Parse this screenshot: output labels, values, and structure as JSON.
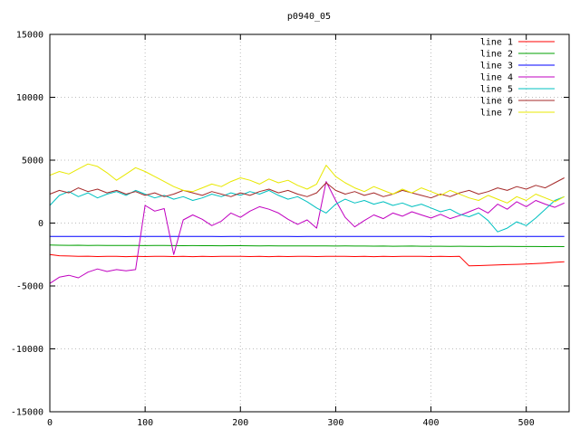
{
  "colors": {
    "background": "#ffffff",
    "grid": "#bdbdbd",
    "axis": "#000000",
    "text": "#000000"
  },
  "chart_data": {
    "type": "line",
    "title": "p0940_05",
    "xlabel": "",
    "ylabel": "",
    "xlim": [
      0,
      545
    ],
    "ylim": [
      -15000,
      15000
    ],
    "x_ticks": [
      0,
      100,
      200,
      300,
      400,
      500
    ],
    "y_ticks": [
      -15000,
      -10000,
      -5000,
      0,
      5000,
      10000,
      15000
    ],
    "grid": true,
    "legend_position": "top-right-inside",
    "x": [
      0,
      10,
      20,
      30,
      40,
      50,
      60,
      70,
      80,
      90,
      100,
      110,
      120,
      130,
      140,
      150,
      160,
      170,
      180,
      190,
      200,
      210,
      220,
      230,
      240,
      250,
      260,
      270,
      280,
      290,
      300,
      310,
      320,
      330,
      340,
      350,
      360,
      370,
      380,
      390,
      400,
      410,
      420,
      430,
      440,
      450,
      460,
      470,
      480,
      490,
      500,
      510,
      520,
      530,
      540
    ],
    "series": [
      {
        "name": "line 1",
        "color": "#ff0000",
        "values": [
          -2500,
          -2600,
          -2620,
          -2650,
          -2630,
          -2660,
          -2640,
          -2650,
          -2670,
          -2650,
          -2660,
          -2650,
          -2640,
          -2660,
          -2650,
          -2670,
          -2650,
          -2660,
          -2650,
          -2640,
          -2650,
          -2660,
          -2650,
          -2670,
          -2650,
          -2660,
          -2640,
          -2650,
          -2660,
          -2650,
          -2640,
          -2650,
          -2660,
          -2650,
          -2670,
          -2650,
          -2660,
          -2650,
          -2640,
          -2650,
          -2660,
          -2650,
          -2660,
          -2650,
          -3400,
          -3380,
          -3350,
          -3330,
          -3300,
          -3280,
          -3250,
          -3220,
          -3180,
          -3120,
          -3080
        ]
      },
      {
        "name": "line 2",
        "color": "#00a000",
        "values": [
          -1750,
          -1760,
          -1770,
          -1765,
          -1775,
          -1770,
          -1780,
          -1775,
          -1785,
          -1780,
          -1790,
          -1785,
          -1780,
          -1790,
          -1795,
          -1790,
          -1800,
          -1795,
          -1805,
          -1800,
          -1800,
          -1805,
          -1810,
          -1805,
          -1815,
          -1810,
          -1820,
          -1815,
          -1810,
          -1820,
          -1825,
          -1820,
          -1830,
          -1825,
          -1835,
          -1830,
          -1840,
          -1835,
          -1830,
          -1840,
          -1845,
          -1840,
          -1850,
          -1845,
          -1855,
          -1850,
          -1860,
          -1855,
          -1850,
          -1860,
          -1865,
          -1860,
          -1870,
          -1865,
          -1870
        ]
      },
      {
        "name": "line 3",
        "color": "#0000ff",
        "values": [
          -1060,
          -1055,
          -1060,
          -1065,
          -1060,
          -1055,
          -1060,
          -1065,
          -1070,
          -1065,
          -1060,
          -1065,
          -1060,
          -1055,
          -1060,
          -1065,
          -1060,
          -1065,
          -1070,
          -1065,
          -1060,
          -1055,
          -1060,
          -1065,
          -1060,
          -1065,
          -1070,
          -1065,
          -1060,
          -1065,
          -1060,
          -1055,
          -1060,
          -1065,
          -1060,
          -1065,
          -1060,
          -1055,
          -1060,
          -1065,
          -1070,
          -1065,
          -1060,
          -1065,
          -1060,
          -1055,
          -1060,
          -1065,
          -1060,
          -1065,
          -1060,
          -1065,
          -1060,
          -1055,
          -1060
        ]
      },
      {
        "name": "line 4",
        "color": "#c000c0",
        "values": [
          -4800,
          -4300,
          -4150,
          -4350,
          -3900,
          -3650,
          -3850,
          -3700,
          -3800,
          -3700,
          1400,
          950,
          1150,
          -2500,
          250,
          650,
          300,
          -200,
          150,
          800,
          450,
          950,
          1300,
          1100,
          800,
          300,
          -100,
          250,
          -400,
          3300,
          1800,
          450,
          -300,
          200,
          650,
          350,
          800,
          550,
          900,
          650,
          400,
          700,
          350,
          600,
          900,
          1200,
          800,
          1500,
          1100,
          1700,
          1300,
          1800,
          1500,
          1250,
          1600
        ]
      },
      {
        "name": "line 5",
        "color": "#00c0c0",
        "values": [
          1400,
          2200,
          2500,
          2100,
          2400,
          2000,
          2300,
          2500,
          2200,
          2600,
          2300,
          2000,
          2200,
          1900,
          2100,
          1800,
          2000,
          2300,
          2100,
          2400,
          2200,
          2500,
          2300,
          2600,
          2200,
          1900,
          2100,
          1700,
          1200,
          800,
          1500,
          1900,
          1600,
          1800,
          1500,
          1700,
          1400,
          1600,
          1300,
          1500,
          1200,
          900,
          1100,
          700,
          500,
          800,
          200,
          -700,
          -400,
          100,
          -200,
          400,
          1100,
          1800,
          2100
        ]
      },
      {
        "name": "line 6",
        "color": "#a52a2a",
        "values": [
          2300,
          2600,
          2400,
          2800,
          2500,
          2700,
          2400,
          2600,
          2300,
          2500,
          2200,
          2400,
          2100,
          2300,
          2600,
          2400,
          2200,
          2500,
          2300,
          2100,
          2400,
          2200,
          2500,
          2700,
          2400,
          2600,
          2300,
          2100,
          2400,
          3200,
          2600,
          2300,
          2500,
          2200,
          2400,
          2100,
          2300,
          2600,
          2400,
          2200,
          2000,
          2300,
          2100,
          2400,
          2600,
          2300,
          2500,
          2800,
          2600,
          2900,
          2700,
          3000,
          2800,
          3200,
          3600
        ]
      },
      {
        "name": "line 7",
        "color": "#e8e800",
        "values": [
          3800,
          4100,
          3900,
          4300,
          4700,
          4500,
          4000,
          3400,
          3900,
          4400,
          4100,
          3700,
          3300,
          2900,
          2600,
          2500,
          2800,
          3100,
          2900,
          3300,
          3600,
          3400,
          3100,
          3500,
          3200,
          3400,
          3000,
          2700,
          3100,
          4600,
          3700,
          3200,
          2800,
          2500,
          2900,
          2600,
          2300,
          2700,
          2400,
          2800,
          2500,
          2200,
          2600,
          2300,
          2000,
          1800,
          2200,
          1900,
          1600,
          2100,
          1800,
          2300,
          2000,
          1700,
          2100
        ]
      }
    ]
  }
}
